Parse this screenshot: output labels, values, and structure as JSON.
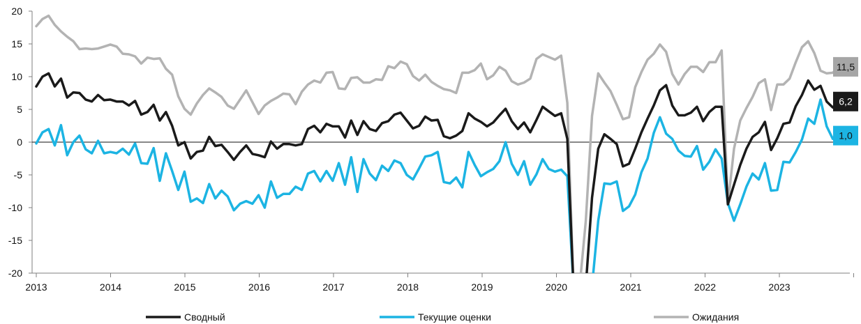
{
  "chart_data": {
    "type": "line",
    "title": "",
    "xlabel": "",
    "ylabel": "",
    "ylim": [
      -20,
      20
    ],
    "yticks": [
      20,
      15,
      10,
      5,
      0,
      -5,
      -10,
      -15,
      -20
    ],
    "year_ticks": [
      "2013",
      "2014",
      "2015",
      "2016",
      "2017",
      "2018",
      "2019",
      "2020",
      "2021",
      "2022",
      "2023"
    ],
    "grid": false,
    "legend_position": "bottom",
    "x_start": "2013-01",
    "x_end": "2023-09",
    "series": [
      {
        "name": "Сводный",
        "color": "#1a1a1a",
        "end_label": "6,2",
        "values": [
          8.5,
          10.0,
          10.5,
          8.5,
          9.7,
          6.8,
          7.6,
          7.5,
          6.5,
          6.2,
          7.2,
          6.4,
          6.5,
          6.2,
          6.2,
          5.6,
          6.3,
          4.2,
          4.6,
          5.7,
          3.3,
          4.6,
          2.5,
          -0.5,
          0.0,
          -2.5,
          -1.5,
          -1.3,
          0.8,
          -0.6,
          -0.4,
          -1.5,
          -2.7,
          -1.5,
          -0.5,
          -1.8,
          -2.0,
          -2.3,
          0.1,
          -1.0,
          -0.3,
          -0.3,
          -0.5,
          -0.3,
          2.0,
          2.5,
          1.5,
          2.8,
          2.4,
          2.4,
          0.7,
          3.3,
          1.1,
          3.2,
          2.0,
          1.7,
          2.9,
          3.2,
          4.2,
          4.5,
          3.3,
          2.1,
          2.5,
          3.9,
          3.3,
          3.4,
          0.9,
          0.6,
          1.0,
          1.7,
          4.4,
          3.6,
          3.1,
          2.4,
          3.0,
          4.1,
          5.1,
          3.2,
          2.0,
          3.0,
          1.5,
          3.4,
          5.4,
          4.7,
          4.0,
          4.4,
          0.5,
          -20,
          -20,
          -20,
          -8.5,
          -1.0,
          1.2,
          0.5,
          -0.3,
          -3.7,
          -3.3,
          -1.0,
          1.5,
          3.6,
          5.6,
          7.9,
          8.7,
          5.6,
          4.1,
          4.1,
          4.5,
          5.4,
          3.2,
          4.6,
          5.4,
          5.4,
          -9.5,
          -6.5,
          -3.5,
          -1.0,
          0.8,
          1.5,
          3.1,
          -1.2,
          0.6,
          2.8,
          3.0,
          5.5,
          7.2,
          9.4,
          8.0,
          8.6,
          6.2,
          5.3,
          6.2
        ]
      },
      {
        "name": "Текущие оценки",
        "color": "#1cb4e3",
        "end_label": "1,0",
        "values": [
          -0.2,
          1.5,
          2.0,
          -0.5,
          2.6,
          -2.0,
          0.0,
          1.0,
          -1.1,
          -1.7,
          0.2,
          -1.7,
          -1.5,
          -1.7,
          -1.0,
          -1.9,
          -0.2,
          -3.2,
          -3.3,
          -0.9,
          -5.9,
          -1.7,
          -4.4,
          -7.3,
          -4.5,
          -9.1,
          -8.6,
          -9.3,
          -6.4,
          -8.6,
          -7.4,
          -8.3,
          -10.4,
          -9.4,
          -9.0,
          -9.4,
          -8.1,
          -10.0,
          -6.0,
          -8.5,
          -7.9,
          -7.9,
          -6.8,
          -7.3,
          -4.8,
          -4.4,
          -6.0,
          -4.4,
          -5.9,
          -3.2,
          -6.5,
          -2.3,
          -7.6,
          -2.6,
          -4.8,
          -5.8,
          -3.6,
          -4.4,
          -2.8,
          -3.2,
          -5.0,
          -5.7,
          -4.0,
          -2.2,
          -2.0,
          -1.5,
          -6.1,
          -6.3,
          -5.4,
          -6.9,
          -1.5,
          -3.5,
          -5.2,
          -4.6,
          -4.1,
          -2.9,
          0.0,
          -3.3,
          -5.0,
          -2.9,
          -6.5,
          -4.9,
          -2.6,
          -4.1,
          -4.5,
          -4.2,
          -5.2,
          -20,
          -20,
          -20,
          -20,
          -12.0,
          -6.3,
          -6.4,
          -6.0,
          -10.5,
          -9.8,
          -8.0,
          -4.6,
          -2.5,
          1.4,
          3.8,
          1.3,
          0.5,
          -1.3,
          -2.1,
          -2.2,
          -0.6,
          -4.2,
          -3.0,
          -1.1,
          -2.5,
          -9.3,
          -12.0,
          -9.5,
          -6.8,
          -4.8,
          -5.7,
          -3.2,
          -7.4,
          -7.3,
          -3.0,
          -3.1,
          -1.5,
          0.4,
          3.6,
          2.8,
          6.5,
          2.4,
          0.5,
          1.0
        ]
      },
      {
        "name": "Ожидания",
        "color": "#b3b3b3",
        "end_label": "11,5",
        "values": [
          17.7,
          18.8,
          19.3,
          17.9,
          16.9,
          16.1,
          15.4,
          14.2,
          14.3,
          14.2,
          14.3,
          14.6,
          14.9,
          14.6,
          13.5,
          13.4,
          13.1,
          12.0,
          12.9,
          12.7,
          12.8,
          11.2,
          10.3,
          7.0,
          5.1,
          4.2,
          5.9,
          7.2,
          8.2,
          7.6,
          6.9,
          5.6,
          5.1,
          6.5,
          7.9,
          6.1,
          4.3,
          5.6,
          6.3,
          6.8,
          7.4,
          7.3,
          5.8,
          7.7,
          8.8,
          9.4,
          9.1,
          10.6,
          10.7,
          8.2,
          8.1,
          9.8,
          9.9,
          9.1,
          9.1,
          9.6,
          9.5,
          11.6,
          11.3,
          12.3,
          11.9,
          10.1,
          9.4,
          10.3,
          9.2,
          8.6,
          8.1,
          7.9,
          7.5,
          10.6,
          10.6,
          11.0,
          12.0,
          9.6,
          10.2,
          11.5,
          10.9,
          9.3,
          8.8,
          9.1,
          9.7,
          12.7,
          13.4,
          13.0,
          12.6,
          13.2,
          6.0,
          -20,
          -20,
          -12.0,
          4.0,
          10.5,
          9.1,
          7.8,
          5.7,
          3.5,
          3.8,
          8.4,
          10.7,
          12.6,
          13.5,
          14.9,
          13.8,
          10.4,
          8.8,
          10.4,
          11.5,
          11.5,
          10.7,
          12.2,
          12.2,
          14.0,
          -9.5,
          -1.0,
          3.3,
          5.2,
          6.9,
          9.0,
          9.6,
          4.9,
          8.8,
          8.8,
          9.7,
          12.2,
          14.5,
          15.4,
          13.6,
          10.9,
          10.5,
          10.6,
          11.5
        ]
      }
    ]
  },
  "colors": {
    "axis": "#7f7f7f",
    "zero_line": "#111111",
    "label_black_bg": "#1a1a1a",
    "label_cyan_bg": "#1cb4e3",
    "label_gray_bg": "#a6a6a6"
  }
}
